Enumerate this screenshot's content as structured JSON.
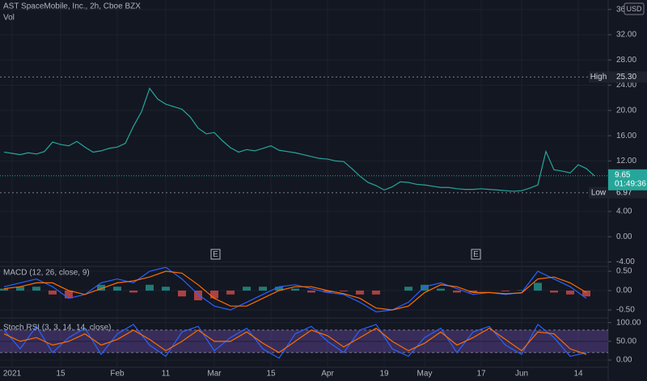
{
  "header": {
    "title": "AST SpaceMobile, Inc., 2h, Cboe BZX",
    "volume_label": "Vol",
    "currency": "USD"
  },
  "earnings_markers": [
    "E",
    "E"
  ],
  "chart_data": [
    {
      "type": "price",
      "x": [
        null,
        "2021",
        null,
        null,
        null,
        null,
        null,
        "15",
        null,
        null,
        null,
        null,
        null,
        null,
        "Feb",
        null,
        null,
        null,
        null,
        null,
        "11",
        null,
        null,
        null,
        null,
        null,
        "Mar",
        null,
        null,
        null,
        null,
        null,
        null,
        "15",
        null,
        null,
        null,
        null,
        null,
        null,
        "Apr",
        null,
        null,
        null,
        null,
        null,
        null,
        "19",
        null,
        null,
        null,
        null,
        "May",
        null,
        null,
        null,
        null,
        null,
        null,
        "17",
        null,
        null,
        null,
        null,
        "Jun",
        null,
        null,
        null,
        null,
        null,
        null,
        "14",
        null,
        null
      ],
      "values": [
        13.4,
        13.2,
        13.0,
        13.3,
        13.1,
        13.5,
        15.0,
        14.6,
        14.4,
        15.1,
        14.2,
        13.4,
        13.6,
        14.0,
        14.2,
        14.8,
        17.5,
        19.8,
        23.5,
        21.8,
        21.0,
        20.6,
        20.2,
        19.0,
        17.2,
        16.3,
        16.5,
        15.2,
        14.1,
        13.4,
        13.8,
        13.6,
        14.0,
        14.4,
        13.7,
        13.5,
        13.3,
        13.0,
        12.7,
        12.4,
        12.3,
        12.0,
        11.9,
        10.8,
        9.6,
        8.6,
        8.1,
        7.4,
        7.9,
        8.7,
        8.6,
        8.3,
        8.2,
        8.0,
        7.8,
        7.8,
        7.6,
        7.5,
        7.5,
        7.6,
        7.5,
        7.4,
        7.3,
        7.2,
        7.3,
        7.7,
        8.2,
        13.5,
        10.6,
        10.4,
        10.1,
        11.4,
        10.8,
        9.65
      ],
      "color": "#26a69a",
      "ylim": [
        -4.7,
        37.5
      ],
      "yticks": [
        {
          "value": 36,
          "label": "36.00"
        },
        {
          "value": 32,
          "label": "32.00"
        },
        {
          "value": 28,
          "label": "28.00"
        },
        {
          "value": 24,
          "label": "24.00"
        },
        {
          "value": 20,
          "label": "20.00"
        },
        {
          "value": 16,
          "label": "16.00"
        },
        {
          "value": 12,
          "label": "12.00"
        },
        {
          "value": 4,
          "label": "4.00"
        },
        {
          "value": 0,
          "label": "0.00"
        },
        {
          "value": -4,
          "label": "-4.00"
        }
      ],
      "high": {
        "label": "High",
        "value": 25.3,
        "value_label": "25.30"
      },
      "low": {
        "label": "Low",
        "value": 6.97,
        "value_label": "6.97"
      },
      "last": {
        "value": 9.65,
        "value_label": "9.65",
        "countdown": "01:49:36"
      }
    },
    {
      "type": "macd",
      "title": "MACD (12, 26, close, 9)",
      "series": [
        {
          "color": "#2962ff",
          "values": [
            0.1,
            0.2,
            0.3,
            0.1,
            -0.2,
            -0.1,
            0.2,
            0.3,
            0.2,
            0.5,
            0.6,
            0.3,
            -0.1,
            -0.4,
            -0.5,
            -0.3,
            -0.1,
            0.1,
            0.15,
            0.05,
            -0.05,
            -0.1,
            -0.3,
            -0.55,
            -0.5,
            -0.3,
            0.1,
            0.2,
            0.05,
            -0.1,
            -0.05,
            -0.1,
            -0.05,
            0.5,
            0.3,
            0.1,
            -0.2
          ]
        },
        {
          "color": "#ff6d00",
          "values": [
            0.05,
            0.1,
            0.2,
            0.2,
            0.0,
            -0.1,
            0.05,
            0.2,
            0.25,
            0.35,
            0.5,
            0.45,
            0.15,
            -0.2,
            -0.4,
            -0.4,
            -0.2,
            0.0,
            0.1,
            0.1,
            0.0,
            -0.08,
            -0.2,
            -0.45,
            -0.5,
            -0.4,
            -0.05,
            0.15,
            0.1,
            -0.05,
            -0.05,
            -0.08,
            -0.06,
            0.3,
            0.35,
            0.2,
            -0.05
          ]
        }
      ],
      "histogram": {
        "up_color": "#26a69a",
        "down_color": "#ef5350",
        "values": [
          0.05,
          0.1,
          0.1,
          -0.1,
          -0.2,
          0,
          0.15,
          0.1,
          -0.05,
          0.15,
          0.1,
          -0.15,
          -0.25,
          -0.2,
          -0.1,
          0.1,
          0.1,
          0.1,
          0.05,
          -0.05,
          -0.05,
          -0.02,
          -0.1,
          -0.1,
          0,
          0.1,
          0.15,
          0.05,
          -0.05,
          -0.05,
          0,
          -0.02,
          0.01,
          0.2,
          -0.05,
          -0.1,
          -0.15
        ]
      },
      "ylim": [
        -0.6875,
        0.625
      ],
      "yticks": [
        {
          "value": 0.5,
          "label": "0.50"
        },
        {
          "value": 0,
          "label": "0.00"
        },
        {
          "value": -0.5,
          "label": "-0.50"
        }
      ]
    },
    {
      "type": "stoch",
      "title": "Stoch RSI (3, 3, 14, 14, close)",
      "series": [
        {
          "color": "#2962ff",
          "values": [
            80,
            30,
            90,
            20,
            60,
            85,
            15,
            70,
            95,
            40,
            10,
            75,
            90,
            25,
            60,
            85,
            30,
            5,
            70,
            90,
            50,
            20,
            80,
            95,
            30,
            10,
            60,
            85,
            20,
            75,
            90,
            40,
            15,
            95,
            60,
            10,
            20
          ]
        },
        {
          "color": "#ff6d00",
          "values": [
            70,
            50,
            60,
            40,
            50,
            70,
            40,
            55,
            80,
            55,
            25,
            50,
            80,
            50,
            50,
            75,
            45,
            20,
            50,
            80,
            65,
            35,
            60,
            85,
            50,
            25,
            45,
            75,
            40,
            60,
            85,
            55,
            25,
            75,
            70,
            30,
            15
          ]
        }
      ],
      "band": [
        20,
        80
      ],
      "band_color": "#7e57c2",
      "ylim": [
        -30,
        110
      ],
      "yticks": [
        {
          "value": 100,
          "label": "100.00"
        },
        {
          "value": 50,
          "label": "50.00"
        },
        {
          "value": 0,
          "label": "0.00"
        }
      ]
    }
  ]
}
